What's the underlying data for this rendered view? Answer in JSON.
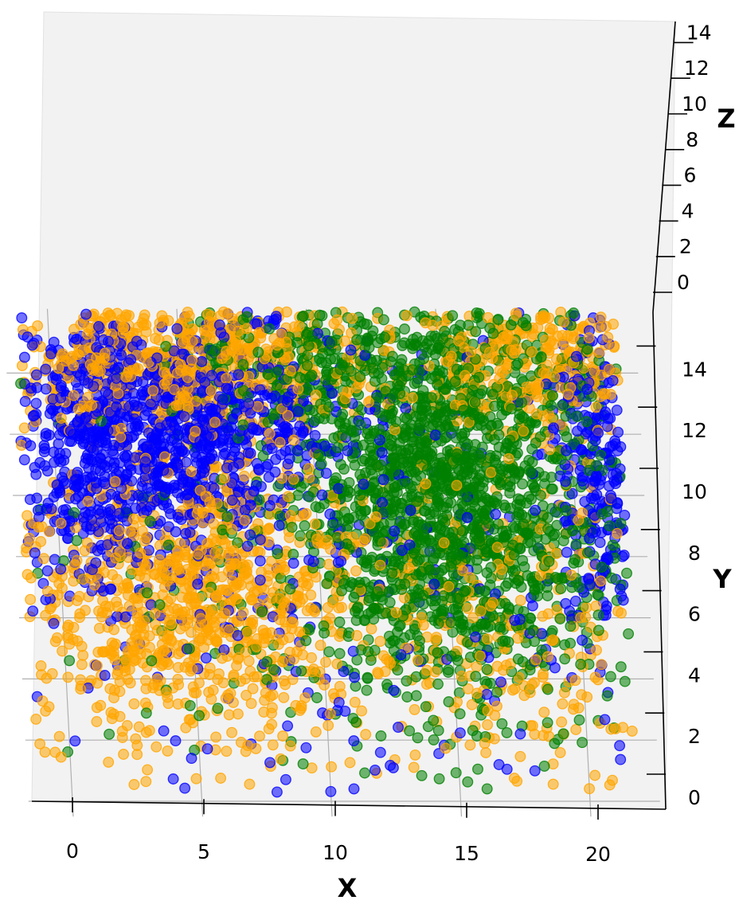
{
  "chart_data": {
    "type": "scatter",
    "projection": "3d",
    "title": "",
    "xlabel": "X",
    "ylabel": "Y",
    "zlabel": "Z",
    "xlim": [
      -1.5,
      22.5
    ],
    "ylim": [
      -0.5,
      15.5
    ],
    "zlim": [
      -1.5,
      14.5
    ],
    "x_ticks": [
      0,
      5,
      10,
      15,
      20
    ],
    "y_ticks": [
      0,
      2,
      4,
      6,
      8,
      10,
      12,
      14
    ],
    "z_ticks": [
      0,
      2,
      4,
      6,
      8,
      10,
      12,
      14
    ],
    "grid": true,
    "legend": "none",
    "point_alpha": 0.55,
    "series": [
      {
        "color": "#0000ff",
        "count": 1700,
        "distribution": "dense in x 0–10, y 8–15; also spread along x 20–22 and scattered elsewhere",
        "clusters": [
          {
            "x": 4.5,
            "y": 12.2,
            "z": 7,
            "sx": 3.0,
            "sy": 1.9,
            "weight": 0.55
          },
          {
            "x": 1.2,
            "y": 11.0,
            "z": 7,
            "sx": 1.3,
            "sy": 2.8,
            "weight": 0.12
          },
          {
            "x": 20.8,
            "y": 11.0,
            "z": 7,
            "sx": 0.8,
            "sy": 3.0,
            "weight": 0.15
          },
          {
            "x": 11.0,
            "y": 8.0,
            "z": 7,
            "sx": 6.0,
            "sy": 5.0,
            "weight": 0.18
          }
        ]
      },
      {
        "color": "#ffa500",
        "count": 2200,
        "distribution": "dense in x 0–12 at y 0–9 and y 13–16; scattered on right side",
        "clusters": [
          {
            "x": 5.0,
            "y": 6.5,
            "z": 7,
            "sx": 3.4,
            "sy": 2.5,
            "weight": 0.4
          },
          {
            "x": 5.5,
            "y": 14.5,
            "z": 7,
            "sx": 3.6,
            "sy": 1.3,
            "weight": 0.3
          },
          {
            "x": 17.0,
            "y": 6.0,
            "z": 7,
            "sx": 3.5,
            "sy": 3.5,
            "weight": 0.15
          },
          {
            "x": 19.0,
            "y": 14.5,
            "z": 7,
            "sx": 2.5,
            "sy": 1.2,
            "weight": 0.15
          }
        ]
      },
      {
        "color": "#008000",
        "count": 2100,
        "distribution": "dense in x 10–20, y 3–15, centred near x 15, y 10",
        "clusters": [
          {
            "x": 15.2,
            "y": 10.0,
            "z": 7,
            "sx": 3.0,
            "sy": 3.4,
            "weight": 0.85
          },
          {
            "x": 10.0,
            "y": 14.5,
            "z": 7,
            "sx": 2.5,
            "sy": 1.2,
            "weight": 0.1
          },
          {
            "x": 6.0,
            "y": 7.0,
            "z": 7,
            "sx": 4.0,
            "sy": 4.0,
            "weight": 0.05
          }
        ]
      }
    ]
  }
}
